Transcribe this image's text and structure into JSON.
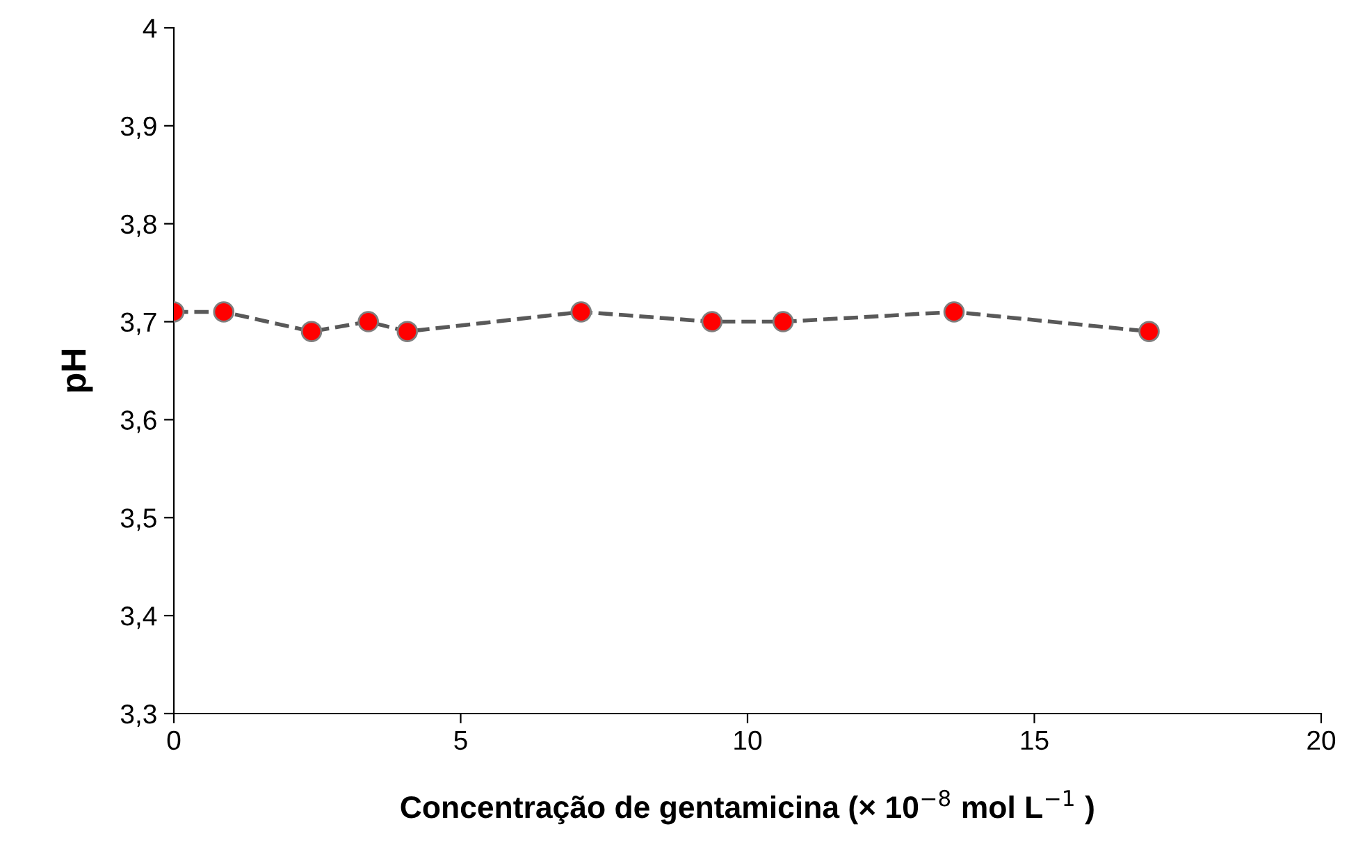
{
  "chart_data": {
    "type": "line",
    "xlabel": "Concentração de gentamicina (× 10$^{−8}$ mol L$^{−1}$ )",
    "ylabel": "pH",
    "x": [
      0,
      0.87,
      2.4,
      3.39,
      4.07,
      7.1,
      9.38,
      10.62,
      13.6,
      17.0
    ],
    "series": [
      {
        "color": "#ff0000",
        "values": [
          3.71,
          3.71,
          3.69,
          3.7,
          3.69,
          3.71,
          3.7,
          3.7,
          3.71,
          3.69
        ]
      }
    ],
    "marker": "circle",
    "line_style": "dashed",
    "grid": false,
    "legend": false,
    "xlim": [
      0,
      20
    ],
    "xticks": [
      0,
      5,
      10,
      15,
      20
    ],
    "ylim": [
      3.3,
      4.0
    ],
    "yticks": [
      {
        "value": 3.3,
        "label": "3,3"
      },
      {
        "value": 3.4,
        "label": "3,4"
      },
      {
        "value": 3.5,
        "label": "3,5"
      },
      {
        "value": 3.6,
        "label": "3,6"
      },
      {
        "value": 3.7,
        "label": "3,7"
      },
      {
        "value": 3.8,
        "label": "3,8"
      },
      {
        "value": 3.9,
        "label": "3,9"
      },
      {
        "value": 4.0,
        "label": "4"
      }
    ]
  }
}
